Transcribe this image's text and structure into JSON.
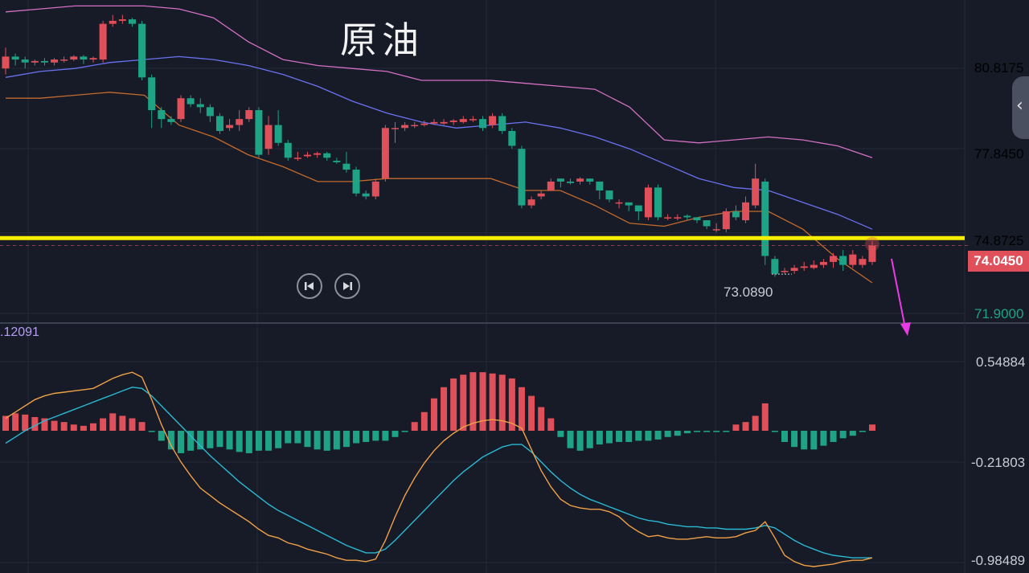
{
  "title": "原油",
  "main_axis": {
    "labels": [
      "80.8175",
      "77.8450",
      "74.8725",
      "71.9000"
    ],
    "values": [
      80.8175,
      77.845,
      74.8725,
      71.9
    ],
    "current_price": "74.0450",
    "low_label": "73.0890",
    "color": "#e0505a"
  },
  "macd_axis": {
    "labels": [
      "0.54884",
      "-0.21803",
      "-0.98489"
    ],
    "values": [
      0.54884,
      -0.21803,
      -0.98489
    ],
    "value_label": ".12091",
    "color": "#c9ccd4"
  },
  "colors": {
    "background": "#161b27",
    "up": "#e0505a",
    "down": "#1fa386",
    "boll_upper": "#d46fc4",
    "boll_mid": "#6b72f0",
    "boll_lower": "#c46a2c",
    "macd_dif": "#f0a046",
    "macd_dea": "#2bb9d3",
    "support_line": "#f7ef00",
    "arrow": "#e83be6"
  },
  "icons": [
    "skip-back-icon",
    "skip-forward-icon",
    "chevron-left-icon"
  ],
  "chart_data": [
    {
      "type": "candlestick",
      "title": "原油",
      "ylim": [
        71.5,
        82.3
      ],
      "support_level": 74.3,
      "candles": [
        [
          80.0,
          80.4,
          80.7,
          79.8
        ],
        [
          80.4,
          80.3,
          80.5,
          80.1
        ],
        [
          80.3,
          80.2,
          80.4,
          80.0
        ],
        [
          80.2,
          80.25,
          80.3,
          80.1
        ],
        [
          80.25,
          80.2,
          80.35,
          80.1
        ],
        [
          80.2,
          80.3,
          80.35,
          80.1
        ],
        [
          80.3,
          80.3,
          80.4,
          80.2
        ],
        [
          80.3,
          80.4,
          80.45,
          80.25
        ],
        [
          80.4,
          80.3,
          80.45,
          80.15
        ],
        [
          80.3,
          80.35,
          80.4,
          80.2
        ],
        [
          80.3,
          81.5,
          81.6,
          80.2
        ],
        [
          81.5,
          81.6,
          81.8,
          81.4
        ],
        [
          81.6,
          81.65,
          81.8,
          81.5
        ],
        [
          81.65,
          81.5,
          81.7,
          81.4
        ],
        [
          81.5,
          79.7,
          81.6,
          79.6
        ],
        [
          79.7,
          78.6,
          79.8,
          78.0
        ],
        [
          78.6,
          78.3,
          78.7,
          78.0
        ],
        [
          78.3,
          78.2,
          78.4,
          78.1
        ],
        [
          78.3,
          79.0,
          79.1,
          78.2
        ],
        [
          79.0,
          78.8,
          79.1,
          78.7
        ],
        [
          78.8,
          78.7,
          79.0,
          78.5
        ],
        [
          78.7,
          78.4,
          78.8,
          78.2
        ],
        [
          78.4,
          77.9,
          78.5,
          77.8
        ],
        [
          78.0,
          78.1,
          78.3,
          77.9
        ],
        [
          78.1,
          78.3,
          78.6,
          77.9
        ],
        [
          78.3,
          78.6,
          78.7,
          78.2
        ],
        [
          78.6,
          77.1,
          78.7,
          77.0
        ],
        [
          77.3,
          78.1,
          78.4,
          77.1
        ],
        [
          78.1,
          77.5,
          78.6,
          77.4
        ],
        [
          77.5,
          77.0,
          77.6,
          76.9
        ],
        [
          77.0,
          77.0,
          77.2,
          76.9
        ],
        [
          77.05,
          77.1,
          77.2,
          77.0
        ],
        [
          77.1,
          77.15,
          77.2,
          77.0
        ],
        [
          77.15,
          77.0,
          77.2,
          76.9
        ],
        [
          76.9,
          76.85,
          77.0,
          76.8
        ],
        [
          76.8,
          76.6,
          77.2,
          76.5
        ],
        [
          76.6,
          75.8,
          76.7,
          75.7
        ],
        [
          75.8,
          75.7,
          75.9,
          75.6
        ],
        [
          75.7,
          76.2,
          76.3,
          75.6
        ],
        [
          76.3,
          78.0,
          78.1,
          76.2
        ],
        [
          78.0,
          78.0,
          78.2,
          77.5
        ],
        [
          78.0,
          78.1,
          78.2,
          77.9
        ],
        [
          78.1,
          78.1,
          78.2,
          78.0
        ],
        [
          78.1,
          78.15,
          78.25,
          78.05
        ],
        [
          78.15,
          78.2,
          78.3,
          78.1
        ],
        [
          78.15,
          78.2,
          78.3,
          78.1
        ],
        [
          78.2,
          78.25,
          78.3,
          78.1
        ],
        [
          78.2,
          78.3,
          78.4,
          78.15
        ],
        [
          78.3,
          78.3,
          78.4,
          78.2
        ],
        [
          78.3,
          78.0,
          78.4,
          77.9
        ],
        [
          78.1,
          78.4,
          78.5,
          78.0
        ],
        [
          78.4,
          77.9,
          78.5,
          77.8
        ],
        [
          77.9,
          77.4,
          78.0,
          77.3
        ],
        [
          77.3,
          75.4,
          77.4,
          75.3
        ],
        [
          75.4,
          75.6,
          75.7,
          75.3
        ],
        [
          75.7,
          75.8,
          75.9,
          75.6
        ],
        [
          75.9,
          76.2,
          76.3,
          75.9
        ],
        [
          76.3,
          76.2,
          76.3,
          76.0
        ],
        [
          76.2,
          76.15,
          76.3,
          76.1
        ],
        [
          76.2,
          76.3,
          76.35,
          76.1
        ],
        [
          76.3,
          76.2,
          76.3,
          76.1
        ],
        [
          76.2,
          75.9,
          76.2,
          75.6
        ],
        [
          75.9,
          75.6,
          75.9,
          75.5
        ],
        [
          75.5,
          75.5,
          75.6,
          75.3
        ],
        [
          75.5,
          75.4,
          75.5,
          75.2
        ],
        [
          75.4,
          75.2,
          75.4,
          74.9
        ],
        [
          75.0,
          76.0,
          76.1,
          74.9
        ],
        [
          76.0,
          75.0,
          76.1,
          74.9
        ],
        [
          75.0,
          75.0,
          75.1,
          74.9
        ],
        [
          75.0,
          75.0,
          75.1,
          74.9
        ],
        [
          75.05,
          75.0,
          75.1,
          74.9
        ],
        [
          75.0,
          74.9,
          75.0,
          74.8
        ],
        [
          74.9,
          74.7,
          74.9,
          74.6
        ],
        [
          74.6,
          74.6,
          74.8,
          74.5
        ],
        [
          74.6,
          75.2,
          75.3,
          74.5
        ],
        [
          75.2,
          75.0,
          75.4,
          74.9
        ],
        [
          74.9,
          75.5,
          75.7,
          74.8
        ],
        [
          75.4,
          76.3,
          76.8,
          75.3
        ],
        [
          76.2,
          73.7,
          76.3,
          73.4
        ],
        [
          73.6,
          73.1,
          73.7,
          73.0
        ],
        [
          73.2,
          73.2,
          73.3,
          73.1
        ],
        [
          73.2,
          73.3,
          73.4,
          73.1
        ],
        [
          73.3,
          73.35,
          73.5,
          73.2
        ],
        [
          73.3,
          73.4,
          73.55,
          73.25
        ],
        [
          73.4,
          73.5,
          73.6,
          73.3
        ],
        [
          73.5,
          73.7,
          73.8,
          73.3
        ],
        [
          73.7,
          73.4,
          73.9,
          73.2
        ],
        [
          73.4,
          73.75,
          73.9,
          73.3
        ],
        [
          73.4,
          73.6,
          73.7,
          73.3
        ],
        [
          73.5,
          74.05,
          74.2,
          73.4
        ]
      ],
      "bollinger": {
        "upper": [
          81.9,
          82.0,
          82.1,
          82.1,
          82.1,
          82.0,
          81.7,
          80.9,
          80.3,
          80.1,
          80.0,
          79.9,
          79.6,
          79.6,
          79.6,
          79.5,
          79.4,
          79.3,
          78.7,
          77.6,
          77.5,
          77.6,
          77.7,
          77.6,
          77.4,
          77.0
        ],
        "mid": [
          79.7,
          79.9,
          80.0,
          80.2,
          80.3,
          80.4,
          80.3,
          80.1,
          79.8,
          79.4,
          78.9,
          78.5,
          78.2,
          78.0,
          78.1,
          78.2,
          78.0,
          77.7,
          77.3,
          76.8,
          76.3,
          76.0,
          75.9,
          75.5,
          75.1,
          74.6
        ],
        "lower": [
          79.0,
          79.0,
          79.1,
          79.2,
          79.1,
          78.1,
          77.7,
          77.1,
          76.7,
          76.2,
          76.2,
          76.3,
          76.3,
          76.3,
          76.3,
          75.9,
          75.9,
          75.4,
          74.8,
          74.7,
          75.0,
          75.2,
          75.2,
          74.6,
          73.6,
          72.8
        ]
      }
    },
    {
      "type": "bar",
      "title": "",
      "ylim": [
        -1.09,
        0.8
      ],
      "histogram": [
        0.12,
        0.14,
        0.13,
        0.11,
        0.1,
        0.08,
        0.07,
        0.05,
        0.04,
        0.06,
        0.1,
        0.14,
        0.12,
        0.1,
        0.07,
        -0.01,
        -0.08,
        -0.15,
        -0.18,
        -0.16,
        -0.15,
        -0.14,
        -0.13,
        -0.15,
        -0.17,
        -0.18,
        -0.16,
        -0.16,
        -0.14,
        -0.1,
        -0.1,
        -0.13,
        -0.15,
        -0.16,
        -0.15,
        -0.13,
        -0.1,
        -0.09,
        -0.08,
        -0.08,
        -0.05,
        -0.01,
        0.07,
        0.15,
        0.26,
        0.35,
        0.42,
        0.45,
        0.47,
        0.47,
        0.46,
        0.45,
        0.42,
        0.35,
        0.28,
        0.19,
        0.1,
        -0.05,
        -0.14,
        -0.16,
        -0.14,
        -0.11,
        -0.1,
        -0.09,
        -0.09,
        -0.08,
        -0.08,
        -0.07,
        -0.05,
        -0.04,
        -0.02,
        -0.01,
        -0.01,
        -0.01,
        -0.01,
        0.05,
        0.07,
        0.12,
        0.22,
        -0.01,
        -0.09,
        -0.13,
        -0.15,
        -0.15,
        -0.12,
        -0.09,
        -0.06,
        -0.04,
        -0.01,
        0.05
      ],
      "dif": [
        0.1,
        0.15,
        0.2,
        0.25,
        0.28,
        0.3,
        0.31,
        0.32,
        0.33,
        0.34,
        0.38,
        0.42,
        0.45,
        0.47,
        0.43,
        0.25,
        0.05,
        -0.12,
        -0.25,
        -0.36,
        -0.46,
        -0.52,
        -0.58,
        -0.63,
        -0.68,
        -0.73,
        -0.79,
        -0.84,
        -0.86,
        -0.9,
        -0.92,
        -0.95,
        -0.97,
        -0.99,
        -1.02,
        -1.04,
        -1.04,
        -1.05,
        -1.03,
        -0.88,
        -0.69,
        -0.52,
        -0.38,
        -0.26,
        -0.16,
        -0.08,
        -0.02,
        0.03,
        0.06,
        0.08,
        0.09,
        0.08,
        0.06,
        0.02,
        -0.15,
        -0.32,
        -0.45,
        -0.55,
        -0.6,
        -0.62,
        -0.63,
        -0.63,
        -0.65,
        -0.69,
        -0.76,
        -0.81,
        -0.85,
        -0.84,
        -0.86,
        -0.87,
        -0.87,
        -0.86,
        -0.85,
        -0.86,
        -0.86,
        -0.85,
        -0.82,
        -0.8,
        -0.73,
        -0.86,
        -1.0,
        -1.05,
        -1.08,
        -1.09,
        -1.08,
        -1.07,
        -1.05,
        -1.04,
        -1.04,
        -1.02
      ],
      "dea": [
        -0.1,
        -0.05,
        0,
        0.04,
        0.08,
        0.11,
        0.14,
        0.17,
        0.2,
        0.23,
        0.26,
        0.29,
        0.32,
        0.35,
        0.34,
        0.28,
        0.2,
        0.12,
        0.04,
        -0.04,
        -0.12,
        -0.2,
        -0.27,
        -0.34,
        -0.41,
        -0.47,
        -0.53,
        -0.59,
        -0.64,
        -0.68,
        -0.72,
        -0.76,
        -0.8,
        -0.84,
        -0.88,
        -0.92,
        -0.95,
        -0.98,
        -0.98,
        -0.95,
        -0.88,
        -0.8,
        -0.72,
        -0.64,
        -0.56,
        -0.48,
        -0.4,
        -0.33,
        -0.27,
        -0.21,
        -0.17,
        -0.13,
        -0.11,
        -0.11,
        -0.17,
        -0.25,
        -0.33,
        -0.4,
        -0.46,
        -0.51,
        -0.55,
        -0.58,
        -0.61,
        -0.64,
        -0.67,
        -0.7,
        -0.72,
        -0.73,
        -0.75,
        -0.76,
        -0.77,
        -0.77,
        -0.78,
        -0.78,
        -0.79,
        -0.79,
        -0.79,
        -0.78,
        -0.76,
        -0.78,
        -0.83,
        -0.88,
        -0.92,
        -0.95,
        -0.98,
        -1.0,
        -1.01,
        -1.02,
        -1.02,
        -1.02
      ]
    }
  ]
}
